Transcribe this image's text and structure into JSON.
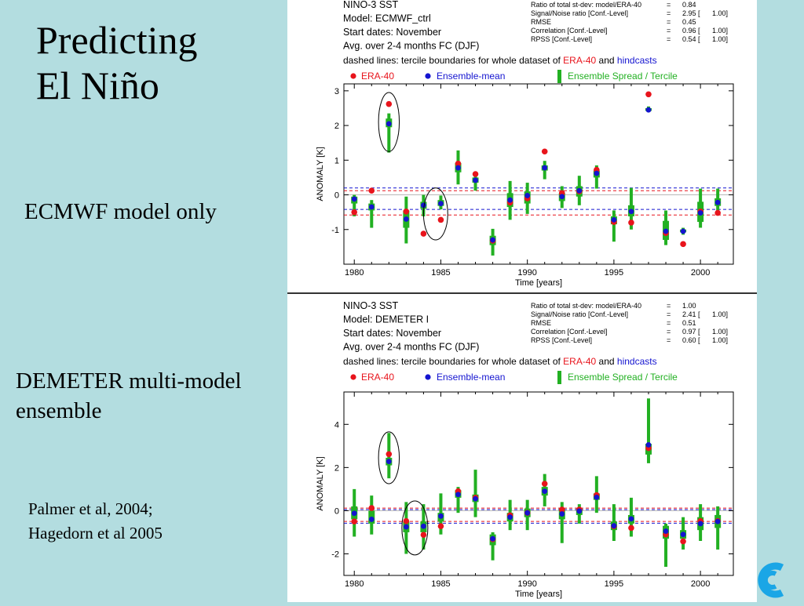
{
  "slide": {
    "title_lines": [
      "Predicting",
      "El Niño"
    ],
    "label_top": "ECMWF model only",
    "label_bottom_lines": [
      "DEMETER multi-model",
      "ensemble"
    ],
    "reference_lines": [
      "Palmer et al, 2004;",
      "Hagedorn et al 2005"
    ]
  },
  "colors": {
    "background": "#b3dde0",
    "era40": "#e8141c",
    "ensemble_mean": "#1414d0",
    "spread": "#22b022",
    "logo": "#1aa6e6"
  },
  "chart_data": [
    {
      "type": "scatter",
      "header_lines": [
        "NINO-3 SST",
        "Model: ECMWF_ctrl",
        "Start dates: November",
        "Avg. over 2-4 months FC (DJF)"
      ],
      "stats": [
        {
          "label": "Ratio of total st-dev: model/ERA-40",
          "eq": "=",
          "value": "0.84",
          "extra": ""
        },
        {
          "label": "Signal/Noise ratio [Conf.-Level]",
          "eq": "=",
          "value": "2.95 [",
          "extra": "1.00]"
        },
        {
          "label": "RMSE",
          "eq": "=",
          "value": "0.45",
          "extra": ""
        },
        {
          "label": "Correlation [Conf.-Level]",
          "eq": "=",
          "value": "0.96 [",
          "extra": "1.00]"
        },
        {
          "label": "RPSS [Conf.-Level]",
          "eq": "=",
          "value": "0.54 [",
          "extra": "1.00]"
        }
      ],
      "dashed_note": {
        "prefix": "dashed lines: tercile boundaries for whole dataset of ",
        "era": "ERA-40",
        "and": "and",
        "hind": "hindcasts"
      },
      "legend": {
        "era40": "ERA-40",
        "mean": "Ensemble-mean",
        "spread": "Ensemble Spread / Tercile"
      },
      "xlabel": "Time [years]",
      "ylabel": "ANOMALY [K]",
      "xlim": [
        1979.4,
        2001.9
      ],
      "ylim": [
        -2.0,
        3.2
      ],
      "xticks": [
        1980,
        1985,
        1990,
        1995,
        2000
      ],
      "yticks": [
        -1,
        0,
        1,
        2,
        3
      ],
      "terciles_era": [
        -0.58,
        0.12
      ],
      "terciles_hindcast": [
        -0.42,
        0.2
      ],
      "years": [
        1980,
        1981,
        1982,
        1983,
        1984,
        1985,
        1986,
        1987,
        1988,
        1989,
        1990,
        1991,
        1992,
        1993,
        1994,
        1995,
        1996,
        1997,
        1998,
        1999,
        2000,
        2001
      ],
      "era40": [
        -0.5,
        0.12,
        2.62,
        -0.48,
        -1.12,
        -0.72,
        0.9,
        0.6,
        -1.32,
        -0.22,
        -0.1,
        1.25,
        0.05,
        0.1,
        0.72,
        -0.78,
        -0.8,
        2.9,
        -1.1,
        -1.42,
        -0.48,
        -0.52
      ],
      "mean": [
        -0.12,
        -0.35,
        2.05,
        -0.7,
        -0.3,
        -0.25,
        0.78,
        0.42,
        -1.3,
        -0.15,
        -0.02,
        0.78,
        -0.05,
        0.12,
        0.62,
        -0.72,
        -0.48,
        2.45,
        -1.05,
        -1.05,
        -0.52,
        -0.22
      ],
      "spread_min": [
        -0.62,
        -0.95,
        1.22,
        -1.4,
        -0.62,
        -0.42,
        0.3,
        0.12,
        -1.75,
        -0.72,
        -0.55,
        0.45,
        -0.38,
        -0.3,
        0.18,
        -1.35,
        -1.0,
        2.4,
        -1.45,
        -1.15,
        -0.95,
        -0.55
      ],
      "spread_max": [
        0.0,
        -0.15,
        2.35,
        -0.05,
        -0.0,
        -0.02,
        1.28,
        0.65,
        -0.98,
        0.4,
        0.35,
        0.98,
        0.25,
        0.55,
        0.85,
        -0.45,
        0.2,
        2.55,
        -0.45,
        -0.95,
        0.18,
        0.18
      ],
      "tercile_low": [
        -0.25,
        -0.45,
        1.95,
        -0.95,
        -0.4,
        -0.32,
        0.65,
        0.35,
        -1.45,
        -0.35,
        -0.25,
        0.7,
        -0.18,
        -0.05,
        0.5,
        -0.85,
        -0.62,
        2.42,
        -1.3,
        -1.08,
        -0.78,
        -0.32
      ],
      "tercile_high": [
        -0.05,
        -0.25,
        2.2,
        -0.45,
        -0.2,
        -0.15,
        0.92,
        0.5,
        -1.18,
        0.05,
        0.1,
        0.85,
        0.05,
        0.25,
        0.7,
        -0.62,
        -0.3,
        2.5,
        -0.75,
        -1.0,
        -0.2,
        -0.1
      ],
      "circles": [
        {
          "x": 1982.0,
          "y": 2.1,
          "rx": 0.6,
          "ry": 0.85
        },
        {
          "x": 1984.7,
          "y": -0.55,
          "rx": 0.7,
          "ry": 0.75
        }
      ]
    },
    {
      "type": "scatter",
      "header_lines": [
        "NINO-3 SST",
        "Model: DEMETER I",
        "Start dates: November",
        "Avg. over 2-4 months FC (DJF)"
      ],
      "stats": [
        {
          "label": "Ratio of total st-dev: model/ERA-40",
          "eq": "=",
          "value": "1.00",
          "extra": ""
        },
        {
          "label": "Signal/Noise ratio [Conf.-Level]",
          "eq": "=",
          "value": "2.41 [",
          "extra": "1.00]"
        },
        {
          "label": "RMSE",
          "eq": "=",
          "value": "0.51",
          "extra": ""
        },
        {
          "label": "Correlation [Conf.-Level]",
          "eq": "=",
          "value": "0.97 [",
          "extra": "1.00]"
        },
        {
          "label": "RPSS [Conf.-Level]",
          "eq": "=",
          "value": "0.60 [",
          "extra": "1.00]"
        }
      ],
      "dashed_note": {
        "prefix": "dashed lines: tercile boundaries for whole dataset of ",
        "era": "ERA-40",
        "and": "and",
        "hind": "hindcasts"
      },
      "legend": {
        "era40": "ERA-40",
        "mean": "Ensemble-mean",
        "spread": "Ensemble Spread / Tercile"
      },
      "xlabel": "Time [years]",
      "ylabel": "ANOMALY [K]",
      "xlim": [
        1979.4,
        2001.9
      ],
      "ylim": [
        -3.0,
        5.5
      ],
      "xticks": [
        1980,
        1985,
        1990,
        1995,
        2000
      ],
      "yticks": [
        -2,
        0,
        2,
        4
      ],
      "terciles_era": [
        -0.5,
        0.12
      ],
      "terciles_hindcast": [
        -0.58,
        0.05
      ],
      "years": [
        1980,
        1981,
        1982,
        1983,
        1984,
        1985,
        1986,
        1987,
        1988,
        1989,
        1990,
        1991,
        1992,
        1993,
        1994,
        1995,
        1996,
        1997,
        1998,
        1999,
        2000,
        2001
      ],
      "era40": [
        -0.5,
        0.12,
        2.62,
        -0.48,
        -1.12,
        -0.72,
        0.9,
        0.6,
        -1.32,
        -0.22,
        -0.1,
        1.25,
        0.05,
        0.05,
        0.72,
        -0.72,
        -0.8,
        2.9,
        -1.1,
        -1.42,
        -0.48,
        -0.48
      ],
      "mean": [
        -0.12,
        -0.4,
        2.28,
        -0.75,
        -0.72,
        -0.25,
        0.75,
        0.55,
        -1.3,
        -0.3,
        -0.1,
        0.9,
        -0.15,
        -0.02,
        0.62,
        -0.7,
        -0.38,
        3.05,
        -0.95,
        -1.1,
        -0.6,
        -0.5
      ],
      "spread_min": [
        -1.2,
        -1.1,
        1.5,
        -2.0,
        -1.8,
        -1.1,
        -0.1,
        -0.3,
        -2.3,
        -0.9,
        -0.9,
        0.2,
        -1.5,
        -0.6,
        -0.1,
        -1.4,
        -1.2,
        2.2,
        -2.6,
        -1.8,
        -1.4,
        -1.8
      ],
      "spread_max": [
        1.0,
        0.7,
        3.6,
        0.4,
        0.3,
        0.8,
        1.1,
        1.9,
        -1.0,
        0.5,
        0.5,
        1.7,
        0.4,
        0.3,
        1.6,
        0.3,
        0.6,
        5.2,
        -0.6,
        -0.3,
        0.3,
        0.2
      ],
      "tercile_low": [
        -0.4,
        -0.6,
        2.1,
        -1.0,
        -1.0,
        -0.5,
        0.6,
        0.4,
        -1.6,
        -0.5,
        -0.3,
        0.7,
        -0.4,
        -0.2,
        0.5,
        -0.9,
        -0.6,
        2.6,
        -1.3,
        -1.3,
        -0.9,
        -0.8
      ],
      "tercile_high": [
        0.2,
        0.0,
        2.45,
        -0.5,
        -0.5,
        -0.1,
        0.95,
        0.75,
        -1.1,
        -0.1,
        0.1,
        1.1,
        0.1,
        0.1,
        0.8,
        -0.5,
        -0.2,
        3.1,
        -0.7,
        -0.9,
        -0.3,
        -0.2
      ],
      "circles": [
        {
          "x": 1982.0,
          "y": 2.45,
          "rx": 0.6,
          "ry": 1.2
        },
        {
          "x": 1983.5,
          "y": -0.8,
          "rx": 0.75,
          "ry": 1.25
        }
      ]
    }
  ]
}
